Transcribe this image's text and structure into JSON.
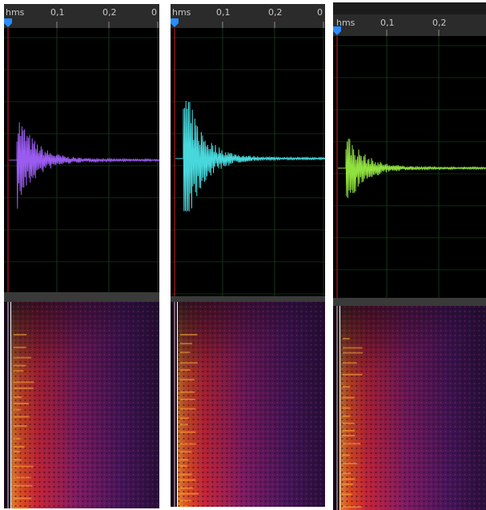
{
  "panels": [
    {
      "ruler": [
        "hms",
        "0,1",
        "0,2",
        "0"
      ]
    },
    {
      "ruler": [
        "hms",
        "0,1",
        "0,2",
        "0"
      ]
    },
    {
      "ruler": [
        "hms",
        "0,1",
        "0,2"
      ]
    }
  ]
}
